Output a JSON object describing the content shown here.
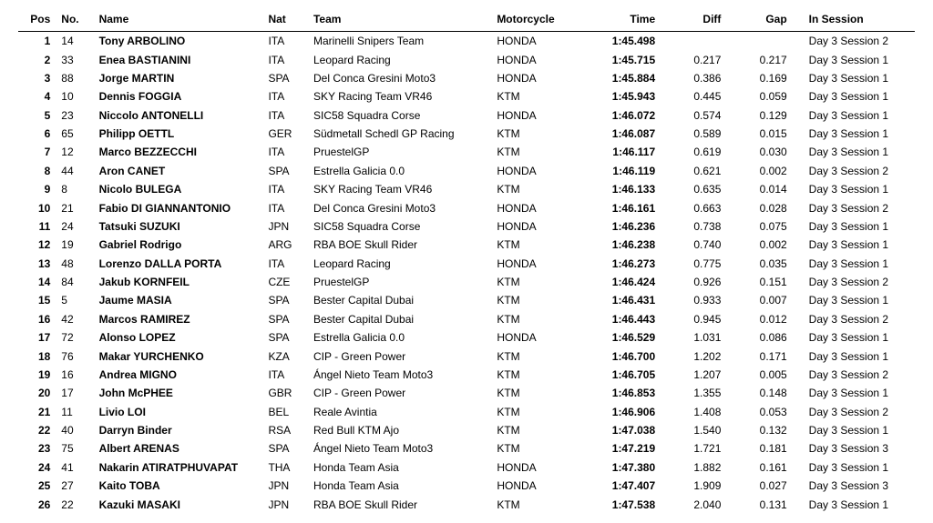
{
  "columns": [
    "Pos",
    "No.",
    "Name",
    "Nat",
    "Team",
    "Motorcycle",
    "Time",
    "Diff",
    "Gap",
    "In Session"
  ],
  "rows": [
    {
      "pos": "1",
      "no": "14",
      "name": "Tony ARBOLINO",
      "nat": "ITA",
      "team": "Marinelli Snipers Team",
      "moto": "HONDA",
      "time": "1:45.498",
      "diff": "",
      "gap": "",
      "sess": "Day 3 Session 2"
    },
    {
      "pos": "2",
      "no": "33",
      "name": "Enea BASTIANINI",
      "nat": "ITA",
      "team": "Leopard Racing",
      "moto": "HONDA",
      "time": "1:45.715",
      "diff": "0.217",
      "gap": "0.217",
      "sess": "Day 3 Session 1"
    },
    {
      "pos": "3",
      "no": "88",
      "name": "Jorge MARTIN",
      "nat": "SPA",
      "team": "Del Conca Gresini Moto3",
      "moto": "HONDA",
      "time": "1:45.884",
      "diff": "0.386",
      "gap": "0.169",
      "sess": "Day 3 Session 1"
    },
    {
      "pos": "4",
      "no": "10",
      "name": "Dennis FOGGIA",
      "nat": "ITA",
      "team": "SKY Racing Team VR46",
      "moto": "KTM",
      "time": "1:45.943",
      "diff": "0.445",
      "gap": "0.059",
      "sess": "Day 3 Session 1"
    },
    {
      "pos": "5",
      "no": "23",
      "name": "Niccolo ANTONELLI",
      "nat": "ITA",
      "team": "SIC58 Squadra Corse",
      "moto": "HONDA",
      "time": "1:46.072",
      "diff": "0.574",
      "gap": "0.129",
      "sess": "Day 3 Session 1"
    },
    {
      "pos": "6",
      "no": "65",
      "name": "Philipp OETTL",
      "nat": "GER",
      "team": "Südmetall Schedl GP Racing",
      "moto": "KTM",
      "time": "1:46.087",
      "diff": "0.589",
      "gap": "0.015",
      "sess": "Day 3 Session 1"
    },
    {
      "pos": "7",
      "no": "12",
      "name": "Marco BEZZECCHI",
      "nat": "ITA",
      "team": "PruestelGP",
      "moto": "KTM",
      "time": "1:46.117",
      "diff": "0.619",
      "gap": "0.030",
      "sess": "Day 3 Session 1"
    },
    {
      "pos": "8",
      "no": "44",
      "name": "Aron CANET",
      "nat": "SPA",
      "team": "Estrella Galicia 0.0",
      "moto": "HONDA",
      "time": "1:46.119",
      "diff": "0.621",
      "gap": "0.002",
      "sess": "Day 3 Session 2"
    },
    {
      "pos": "9",
      "no": "8",
      "name": "Nicolo BULEGA",
      "nat": "ITA",
      "team": "SKY Racing Team VR46",
      "moto": "KTM",
      "time": "1:46.133",
      "diff": "0.635",
      "gap": "0.014",
      "sess": "Day 3 Session 1"
    },
    {
      "pos": "10",
      "no": "21",
      "name": "Fabio DI GIANNANTONIO",
      "nat": "ITA",
      "team": "Del Conca Gresini Moto3",
      "moto": "HONDA",
      "time": "1:46.161",
      "diff": "0.663",
      "gap": "0.028",
      "sess": "Day 3 Session 2"
    },
    {
      "pos": "11",
      "no": "24",
      "name": "Tatsuki SUZUKI",
      "nat": "JPN",
      "team": "SIC58 Squadra Corse",
      "moto": "HONDA",
      "time": "1:46.236",
      "diff": "0.738",
      "gap": "0.075",
      "sess": "Day 3 Session 1"
    },
    {
      "pos": "12",
      "no": "19",
      "name": "Gabriel Rodrigo",
      "nat": "ARG",
      "team": "RBA BOE Skull Rider",
      "moto": "KTM",
      "time": "1:46.238",
      "diff": "0.740",
      "gap": "0.002",
      "sess": "Day 3 Session 1"
    },
    {
      "pos": "13",
      "no": "48",
      "name": "Lorenzo DALLA PORTA",
      "nat": "ITA",
      "team": "Leopard Racing",
      "moto": "HONDA",
      "time": "1:46.273",
      "diff": "0.775",
      "gap": "0.035",
      "sess": "Day 3 Session 1"
    },
    {
      "pos": "14",
      "no": "84",
      "name": "Jakub KORNFEIL",
      "nat": "CZE",
      "team": "PruestelGP",
      "moto": "KTM",
      "time": "1:46.424",
      "diff": "0.926",
      "gap": "0.151",
      "sess": "Day 3 Session 2"
    },
    {
      "pos": "15",
      "no": "5",
      "name": "Jaume MASIA",
      "nat": "SPA",
      "team": "Bester Capital Dubai",
      "moto": "KTM",
      "time": "1:46.431",
      "diff": "0.933",
      "gap": "0.007",
      "sess": "Day 3 Session 1"
    },
    {
      "pos": "16",
      "no": "42",
      "name": "Marcos RAMIREZ",
      "nat": "SPA",
      "team": "Bester Capital Dubai",
      "moto": "KTM",
      "time": "1:46.443",
      "diff": "0.945",
      "gap": "0.012",
      "sess": "Day 3 Session 2"
    },
    {
      "pos": "17",
      "no": "72",
      "name": "Alonso LOPEZ",
      "nat": "SPA",
      "team": "Estrella Galicia 0.0",
      "moto": "HONDA",
      "time": "1:46.529",
      "diff": "1.031",
      "gap": "0.086",
      "sess": "Day 3 Session 1"
    },
    {
      "pos": "18",
      "no": "76",
      "name": "Makar YURCHENKO",
      "nat": "KZA",
      "team": "CIP - Green Power",
      "moto": "KTM",
      "time": "1:46.700",
      "diff": "1.202",
      "gap": "0.171",
      "sess": "Day 3 Session 1"
    },
    {
      "pos": "19",
      "no": "16",
      "name": "Andrea MIGNO",
      "nat": "ITA",
      "team": "Ángel Nieto Team Moto3",
      "moto": "KTM",
      "time": "1:46.705",
      "diff": "1.207",
      "gap": "0.005",
      "sess": "Day 3 Session 2"
    },
    {
      "pos": "20",
      "no": "17",
      "name": "John McPHEE",
      "nat": "GBR",
      "team": "CIP - Green Power",
      "moto": "KTM",
      "time": "1:46.853",
      "diff": "1.355",
      "gap": "0.148",
      "sess": "Day 3 Session 1"
    },
    {
      "pos": "21",
      "no": "11",
      "name": "Livio LOI",
      "nat": "BEL",
      "team": "Reale Avintia",
      "moto": "KTM",
      "time": "1:46.906",
      "diff": "1.408",
      "gap": "0.053",
      "sess": "Day 3 Session 2"
    },
    {
      "pos": "22",
      "no": "40",
      "name": "Darryn Binder",
      "nat": "RSA",
      "team": "Red Bull KTM Ajo",
      "moto": "KTM",
      "time": "1:47.038",
      "diff": "1.540",
      "gap": "0.132",
      "sess": "Day 3 Session 1"
    },
    {
      "pos": "23",
      "no": "75",
      "name": "Albert ARENAS",
      "nat": "SPA",
      "team": "Ángel Nieto Team Moto3",
      "moto": "KTM",
      "time": "1:47.219",
      "diff": "1.721",
      "gap": "0.181",
      "sess": "Day 3 Session 3"
    },
    {
      "pos": "24",
      "no": "41",
      "name": "Nakarin ATIRATPHUVAPAT",
      "nat": "THA",
      "team": "Honda Team Asia",
      "moto": "HONDA",
      "time": "1:47.380",
      "diff": "1.882",
      "gap": "0.161",
      "sess": "Day 3 Session 1"
    },
    {
      "pos": "25",
      "no": "27",
      "name": "Kaito TOBA",
      "nat": "JPN",
      "team": "Honda Team Asia",
      "moto": "HONDA",
      "time": "1:47.407",
      "diff": "1.909",
      "gap": "0.027",
      "sess": "Day 3 Session 3"
    },
    {
      "pos": "26",
      "no": "22",
      "name": "Kazuki MASAKI",
      "nat": "JPN",
      "team": "RBA BOE Skull Rider",
      "moto": "KTM",
      "time": "1:47.538",
      "diff": "2.040",
      "gap": "0.131",
      "sess": "Day 3 Session 1"
    }
  ]
}
